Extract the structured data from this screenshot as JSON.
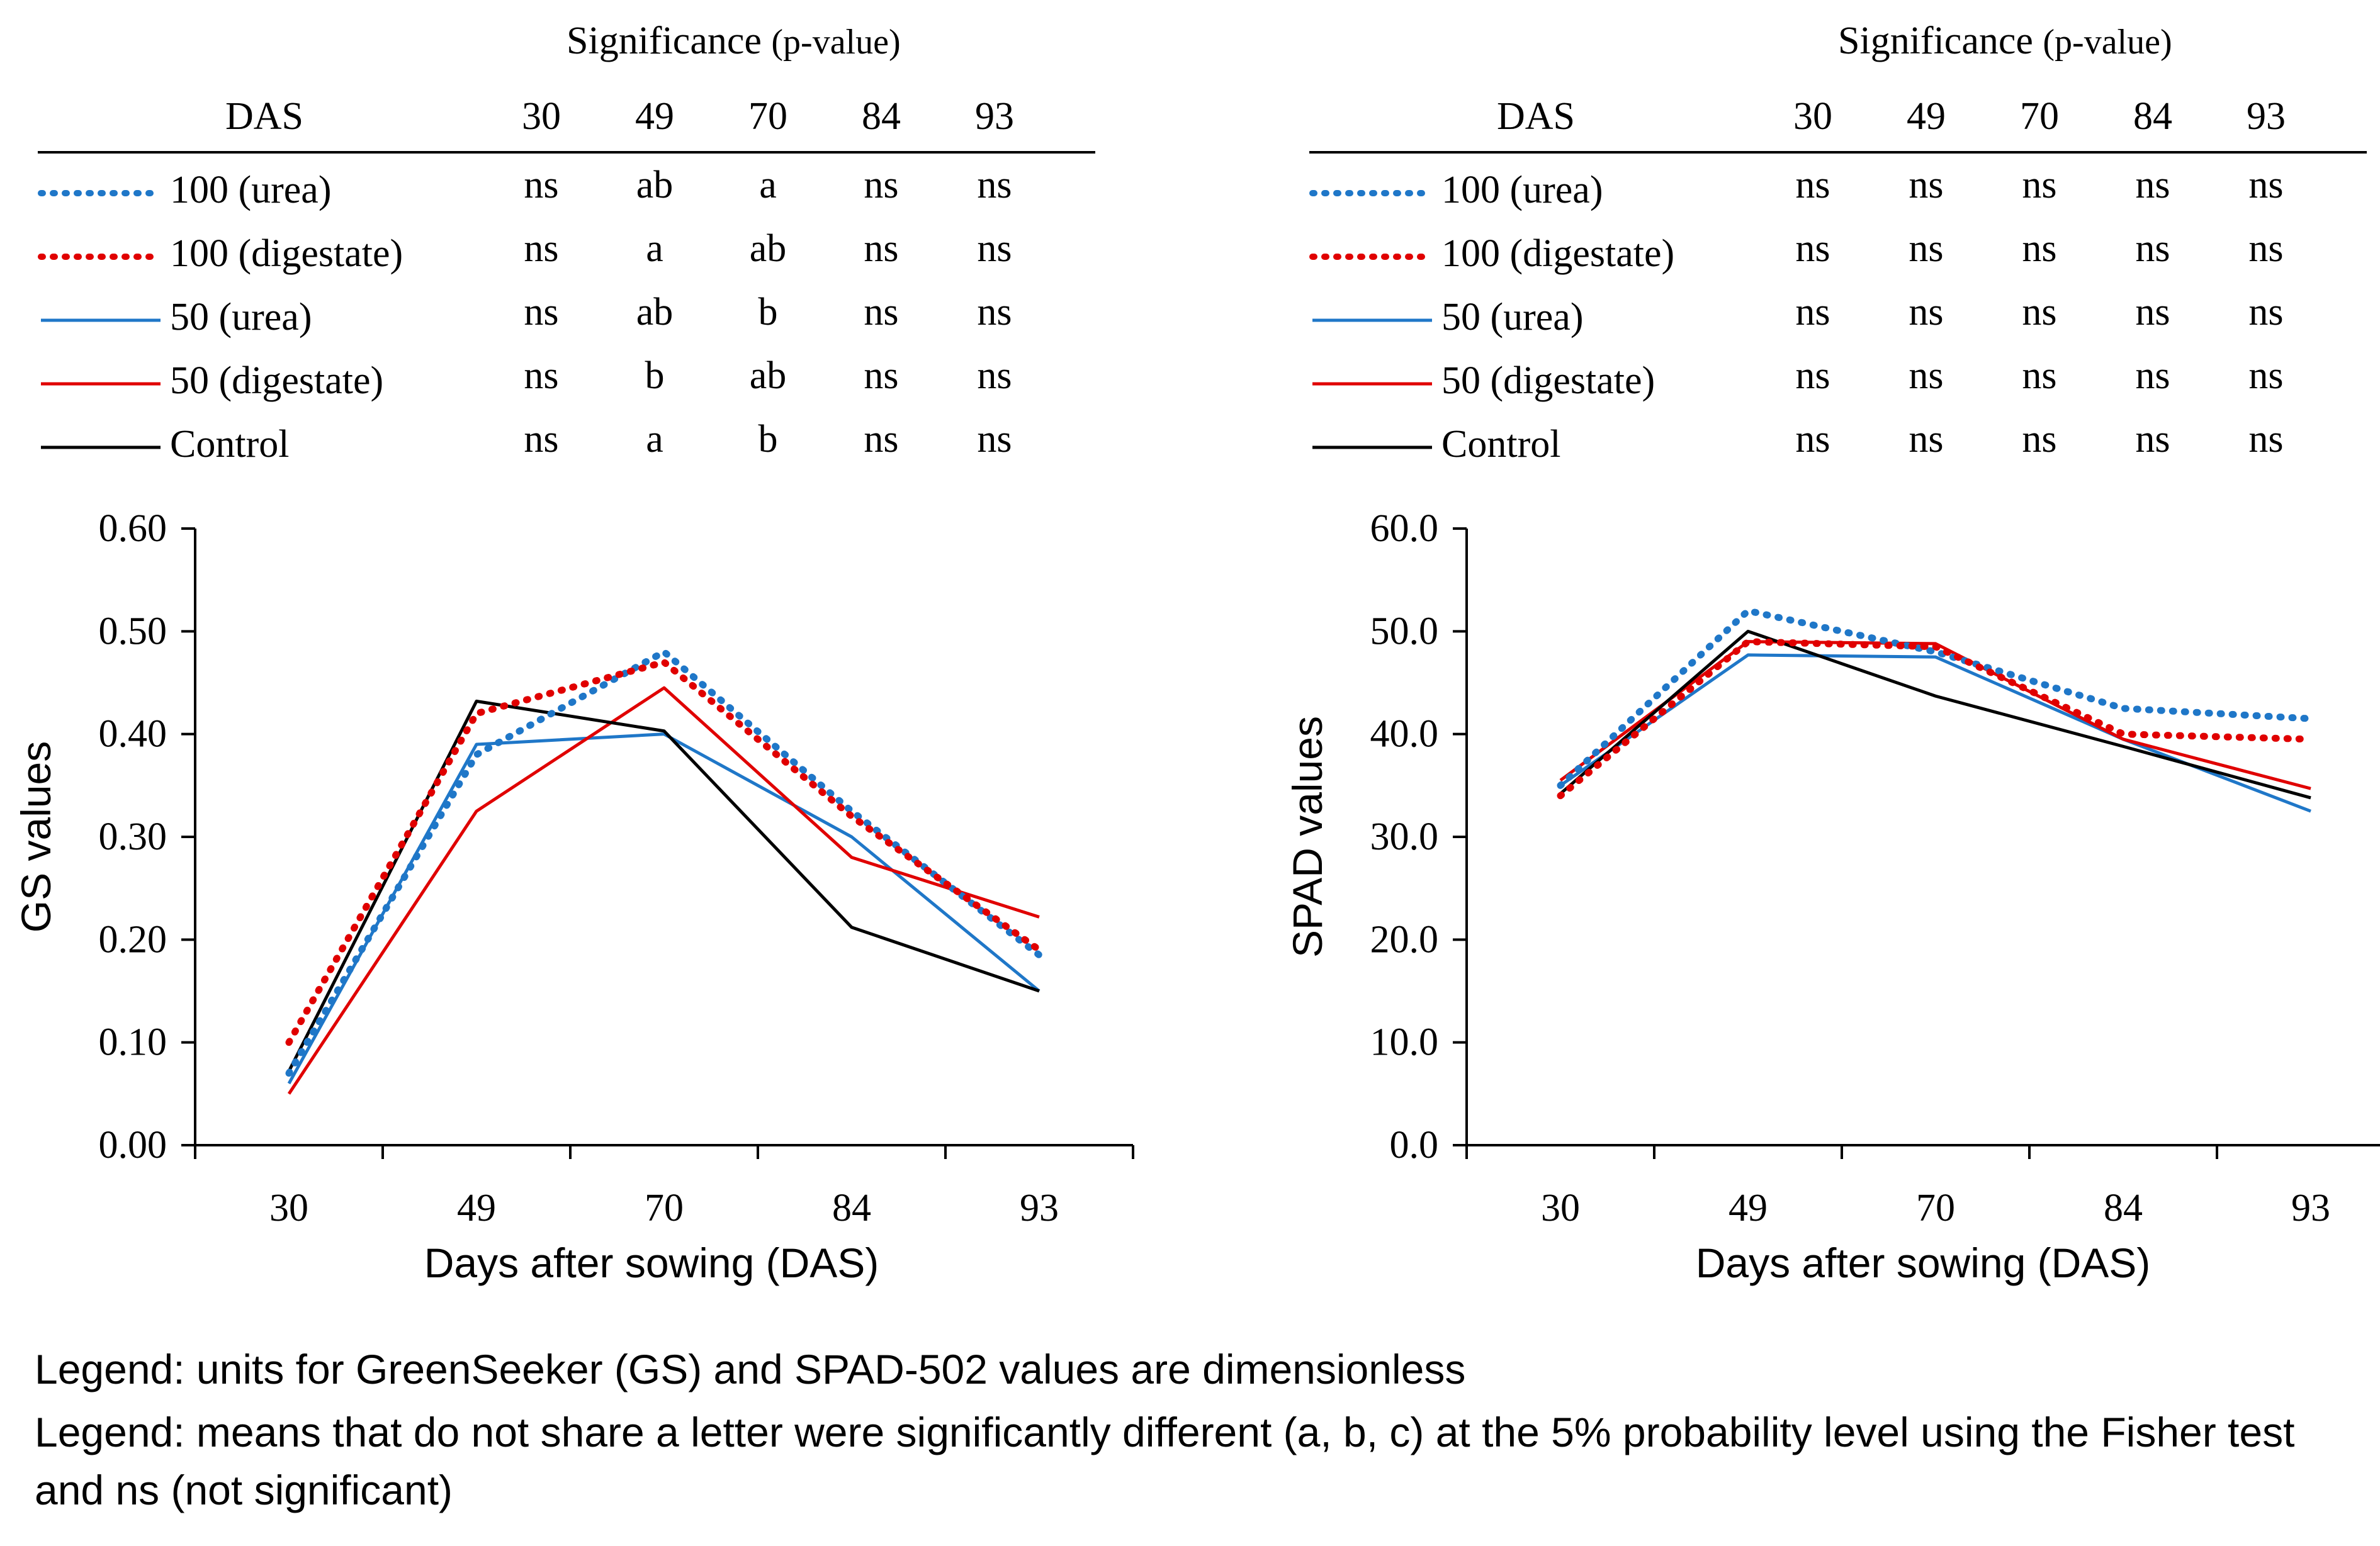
{
  "colors": {
    "blue": "#1f77c8",
    "red": "#e00000",
    "black": "#000000"
  },
  "chart_data": [
    {
      "type": "line",
      "id": "gs",
      "significance_title": "Significance",
      "significance_subtitle": "(p-value)",
      "table_header": "DAS",
      "categories": [
        "30",
        "49",
        "70",
        "84",
        "93"
      ],
      "ylabel": "GS values",
      "xlabel": "Days after sowing (DAS)",
      "ylim": [
        0,
        0.6
      ],
      "yticks": [
        "0.00",
        "0.10",
        "0.20",
        "0.30",
        "0.40",
        "0.50",
        "0.60"
      ],
      "series": [
        {
          "name": "100 (urea)",
          "style": "dotted",
          "color": "#1f77c8",
          "values": [
            0.07,
            0.38,
            0.48,
            0.325,
            0.185
          ],
          "significance": [
            "ns",
            "ab",
            "a",
            "ns",
            "ns"
          ]
        },
        {
          "name": "100 (digestate)",
          "style": "dotted",
          "color": "#e00000",
          "values": [
            0.1,
            0.42,
            0.47,
            0.32,
            0.19
          ],
          "significance": [
            "ns",
            "a",
            "ab",
            "ns",
            "ns"
          ]
        },
        {
          "name": "50 (urea)",
          "style": "solid",
          "color": "#1f77c8",
          "values": [
            0.06,
            0.39,
            0.4,
            0.3,
            0.15
          ],
          "significance": [
            "ns",
            "ab",
            "b",
            "ns",
            "ns"
          ]
        },
        {
          "name": "50 (digestate)",
          "style": "solid",
          "color": "#e00000",
          "values": [
            0.05,
            0.325,
            0.445,
            0.28,
            0.222
          ],
          "significance": [
            "ns",
            "b",
            "ab",
            "ns",
            "ns"
          ]
        },
        {
          "name": "Control",
          "style": "solid",
          "color": "#000000",
          "values": [
            0.072,
            0.432,
            0.403,
            0.212,
            0.15
          ],
          "significance": [
            "ns",
            "a",
            "b",
            "ns",
            "ns"
          ]
        }
      ]
    },
    {
      "type": "line",
      "id": "spad",
      "significance_title": "Significance",
      "significance_subtitle": "(p-value)",
      "table_header": "DAS",
      "categories": [
        "30",
        "49",
        "70",
        "84",
        "93"
      ],
      "ylabel": "SPAD values",
      "xlabel": "Days after sowing (DAS)",
      "ylim": [
        0,
        60
      ],
      "yticks": [
        "0.0",
        "10.0",
        "20.0",
        "30.0",
        "40.0",
        "50.0",
        "60.0"
      ],
      "series": [
        {
          "name": "100 (urea)",
          "style": "dotted",
          "color": "#1f77c8",
          "values": [
            35.0,
            52.0,
            48.0,
            42.5,
            41.5
          ],
          "significance": [
            "ns",
            "ns",
            "ns",
            "ns",
            "ns"
          ]
        },
        {
          "name": "100 (digestate)",
          "style": "dotted",
          "color": "#e00000",
          "values": [
            34.0,
            49.0,
            48.5,
            40.0,
            39.5
          ],
          "significance": [
            "ns",
            "ns",
            "ns",
            "ns",
            "ns"
          ]
        },
        {
          "name": "50 (urea)",
          "style": "solid",
          "color": "#1f77c8",
          "values": [
            35.0,
            47.7,
            47.5,
            39.5,
            32.5
          ],
          "significance": [
            "ns",
            "ns",
            "ns",
            "ns",
            "ns"
          ]
        },
        {
          "name": "50 (digestate)",
          "style": "solid",
          "color": "#e00000",
          "values": [
            35.5,
            49.0,
            48.8,
            39.5,
            34.7
          ],
          "significance": [
            "ns",
            "ns",
            "ns",
            "ns",
            "ns"
          ]
        },
        {
          "name": "Control",
          "style": "solid",
          "color": "#000000",
          "values": [
            34.2,
            50.0,
            43.7,
            38.8,
            33.8
          ],
          "significance": [
            "ns",
            "ns",
            "ns",
            "ns",
            "ns"
          ]
        }
      ]
    }
  ],
  "footnotes": [
    "Legend: units for GreenSeeker (GS) and SPAD-502 values are dimensionless",
    "Legend: means that do not share a letter were significantly different (a, b, c) at the 5% probability level using the Fisher test and ns (not significant)"
  ]
}
